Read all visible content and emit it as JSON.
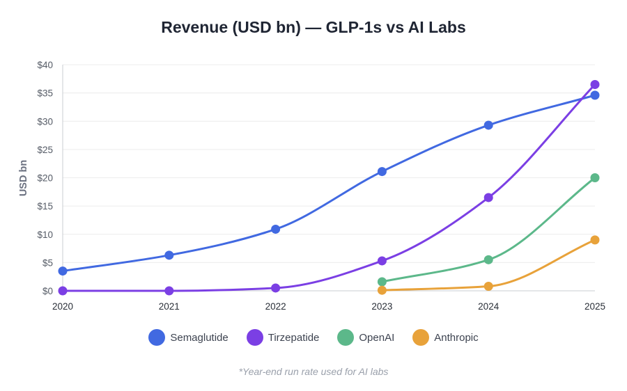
{
  "chart_data": {
    "type": "line",
    "title": "Revenue (USD bn) — GLP-1s vs AI Labs",
    "xlabel": "",
    "ylabel": "USD bn",
    "x": [
      2020,
      2021,
      2022,
      2023,
      2024,
      2025
    ],
    "ylim": [
      0,
      40
    ],
    "y_ticks": [
      0,
      5,
      10,
      15,
      20,
      25,
      30,
      35,
      40
    ],
    "y_tick_labels": [
      "$0",
      "$5",
      "$10",
      "$15",
      "$20",
      "$25",
      "$30",
      "$35",
      "$40"
    ],
    "grid": true,
    "legend_position": "bottom",
    "series": [
      {
        "name": "Semaglutide",
        "color": "#4169e1",
        "values": [
          3.5,
          6.3,
          10.9,
          21.1,
          29.3,
          34.6
        ]
      },
      {
        "name": "Tirzepatide",
        "color": "#7b3fe4",
        "values": [
          0,
          0,
          0.5,
          5.3,
          16.5,
          36.5
        ]
      },
      {
        "name": "OpenAI",
        "color": "#5cb88a",
        "values": [
          null,
          null,
          null,
          1.6,
          5.5,
          20.0
        ]
      },
      {
        "name": "Anthropic",
        "color": "#e8a23a",
        "values": [
          null,
          null,
          null,
          0.1,
          0.8,
          9.0
        ]
      }
    ],
    "footnote": "*Year-end run rate used for AI labs"
  }
}
